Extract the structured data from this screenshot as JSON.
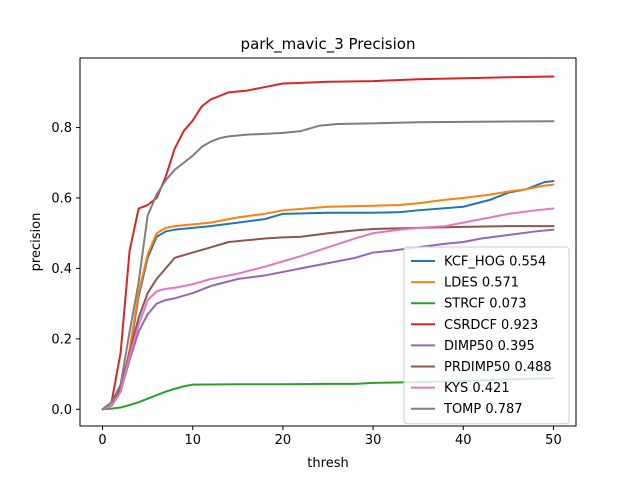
{
  "chart_data": {
    "type": "line",
    "title": "park_mavic_3 Precision",
    "xlabel": "thresh",
    "ylabel": "precision",
    "xlim": [
      -2.5,
      52.5
    ],
    "ylim": [
      -0.0475,
      0.9975
    ],
    "xticks": [
      0,
      10,
      20,
      30,
      40,
      50
    ],
    "xtick_labels": [
      "0",
      "10",
      "20",
      "30",
      "40",
      "50"
    ],
    "yticks": [
      0.0,
      0.2,
      0.4,
      0.6,
      0.8
    ],
    "ytick_labels": [
      "0.0",
      "0.2",
      "0.4",
      "0.6",
      "0.8"
    ],
    "grid": false,
    "legend_position": "lower-right",
    "series": [
      {
        "name": "KCF_HOG 0.554",
        "color": "#1f77b4",
        "x": [
          0,
          1,
          2,
          3,
          4,
          5,
          6,
          7,
          8,
          10,
          12,
          15,
          18,
          20,
          25,
          30,
          33,
          35,
          40,
          43,
          45,
          47,
          49,
          50
        ],
        "y": [
          0.0,
          0.01,
          0.05,
          0.16,
          0.32,
          0.43,
          0.49,
          0.505,
          0.51,
          0.515,
          0.52,
          0.53,
          0.54,
          0.555,
          0.558,
          0.558,
          0.56,
          0.565,
          0.575,
          0.595,
          0.615,
          0.625,
          0.645,
          0.648
        ]
      },
      {
        "name": "LDES 0.571",
        "color": "#ff7f0e",
        "x": [
          0,
          1,
          2,
          3,
          4,
          5,
          6,
          7,
          8,
          10,
          12,
          15,
          18,
          20,
          25,
          30,
          33,
          35,
          38,
          40,
          43,
          45,
          47,
          49,
          50
        ],
        "y": [
          0.0,
          0.01,
          0.05,
          0.17,
          0.33,
          0.44,
          0.5,
          0.515,
          0.52,
          0.525,
          0.53,
          0.545,
          0.555,
          0.565,
          0.575,
          0.578,
          0.58,
          0.585,
          0.595,
          0.6,
          0.61,
          0.618,
          0.625,
          0.635,
          0.638
        ]
      },
      {
        "name": "STRCF 0.073",
        "color": "#2ca02c",
        "x": [
          0,
          1,
          2,
          3,
          4,
          5,
          6,
          7,
          8,
          9,
          10,
          15,
          20,
          25,
          28,
          30,
          35,
          40,
          45,
          50
        ],
        "y": [
          0.0,
          0.002,
          0.005,
          0.012,
          0.02,
          0.03,
          0.04,
          0.05,
          0.058,
          0.065,
          0.07,
          0.071,
          0.071,
          0.072,
          0.072,
          0.075,
          0.077,
          0.08,
          0.085,
          0.088
        ]
      },
      {
        "name": "CSRDCF 0.923",
        "color": "#d62728",
        "x": [
          0,
          1,
          2,
          3,
          4,
          5,
          6,
          7,
          8,
          9,
          10,
          11,
          12,
          14,
          16,
          18,
          20,
          22,
          25,
          30,
          33,
          35,
          40,
          45,
          50
        ],
        "y": [
          0.0,
          0.02,
          0.16,
          0.45,
          0.57,
          0.58,
          0.6,
          0.66,
          0.74,
          0.79,
          0.82,
          0.86,
          0.88,
          0.9,
          0.905,
          0.915,
          0.925,
          0.927,
          0.93,
          0.932,
          0.935,
          0.937,
          0.94,
          0.943,
          0.945
        ]
      },
      {
        "name": "DIMP50 0.395",
        "color": "#9467bd",
        "x": [
          0,
          1,
          2,
          3,
          4,
          5,
          6,
          7,
          8,
          10,
          12,
          15,
          18,
          20,
          22,
          25,
          28,
          30,
          32,
          35,
          38,
          40,
          42,
          45,
          48,
          50
        ],
        "y": [
          0.0,
          0.01,
          0.05,
          0.14,
          0.22,
          0.27,
          0.3,
          0.31,
          0.315,
          0.33,
          0.35,
          0.37,
          0.38,
          0.39,
          0.4,
          0.415,
          0.43,
          0.445,
          0.45,
          0.46,
          0.47,
          0.475,
          0.485,
          0.495,
          0.505,
          0.51
        ]
      },
      {
        "name": "PRDIMP50 0.488",
        "color": "#8c564b",
        "x": [
          0,
          1,
          2,
          3,
          4,
          5,
          6,
          7,
          8,
          10,
          12,
          14,
          16,
          18,
          20,
          22,
          25,
          28,
          30,
          35,
          40,
          45,
          50
        ],
        "y": [
          0.0,
          0.01,
          0.06,
          0.16,
          0.26,
          0.33,
          0.37,
          0.4,
          0.43,
          0.445,
          0.46,
          0.475,
          0.48,
          0.485,
          0.488,
          0.49,
          0.5,
          0.508,
          0.512,
          0.515,
          0.518,
          0.52,
          0.52
        ]
      },
      {
        "name": "KYS 0.421",
        "color": "#e377c2",
        "x": [
          0,
          1,
          2,
          3,
          4,
          5,
          6,
          7,
          8,
          10,
          12,
          15,
          18,
          20,
          22,
          25,
          28,
          30,
          33,
          35,
          38,
          40,
          43,
          45,
          48,
          50
        ],
        "y": [
          0.0,
          0.01,
          0.05,
          0.15,
          0.24,
          0.31,
          0.335,
          0.342,
          0.345,
          0.355,
          0.37,
          0.385,
          0.405,
          0.42,
          0.435,
          0.46,
          0.485,
          0.5,
          0.51,
          0.515,
          0.52,
          0.53,
          0.545,
          0.555,
          0.565,
          0.57
        ]
      },
      {
        "name": "TOMP 0.787",
        "color": "#7f7f7f",
        "x": [
          0,
          1,
          2,
          3,
          4,
          5,
          6,
          7,
          8,
          9,
          10,
          11,
          12,
          13,
          14,
          16,
          18,
          20,
          22,
          24,
          26,
          30,
          35,
          40,
          45,
          50
        ],
        "y": [
          0.0,
          0.02,
          0.07,
          0.22,
          0.36,
          0.55,
          0.61,
          0.65,
          0.68,
          0.7,
          0.72,
          0.745,
          0.76,
          0.77,
          0.775,
          0.78,
          0.782,
          0.785,
          0.79,
          0.805,
          0.81,
          0.812,
          0.815,
          0.816,
          0.817,
          0.818
        ]
      }
    ]
  }
}
